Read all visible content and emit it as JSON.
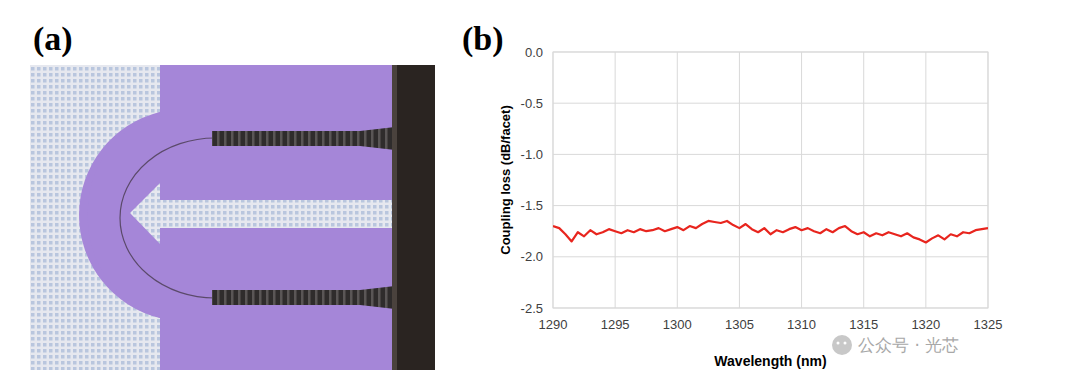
{
  "panels": {
    "a": {
      "label": "(a)"
    },
    "b": {
      "label": "(b)"
    }
  },
  "watermark": "公众号 · 光芯",
  "chart_data": {
    "type": "line",
    "x_label": "Wavelength (nm)",
    "y_label": "Coupling loss (dB/facet)",
    "color": "#e8251e",
    "grid": true,
    "xlim": [
      1290,
      1325
    ],
    "xticks": [
      1290,
      1295,
      1300,
      1305,
      1310,
      1315,
      1320,
      1325
    ],
    "ylim": [
      -2.5,
      0
    ],
    "yticks": [
      {
        "value": 0,
        "label": "0.0"
      },
      -0.5,
      {
        "value": -1,
        "label": "-1.0"
      },
      -1.5,
      {
        "value": -2,
        "label": "-2.0"
      },
      -2.5
    ],
    "x": [
      1290,
      1290.5,
      1291,
      1291.5,
      1292,
      1292.5,
      1293,
      1293.5,
      1294,
      1294.5,
      1295,
      1295.5,
      1296,
      1296.5,
      1297,
      1297.5,
      1298,
      1298.5,
      1299,
      1299.5,
      1300,
      1300.5,
      1301,
      1301.5,
      1302,
      1302.5,
      1303,
      1303.5,
      1304,
      1304.5,
      1305,
      1305.5,
      1306,
      1306.5,
      1307,
      1307.5,
      1308,
      1308.5,
      1309,
      1309.5,
      1310,
      1310.5,
      1311,
      1311.5,
      1312,
      1312.5,
      1313,
      1313.5,
      1314,
      1314.5,
      1315,
      1315.5,
      1316,
      1316.5,
      1317,
      1317.5,
      1318,
      1318.5,
      1319,
      1319.5,
      1320,
      1320.5,
      1321,
      1321.5,
      1322,
      1322.5,
      1323,
      1323.5,
      1324,
      1324.5,
      1325
    ],
    "values": [
      -1.7,
      -1.72,
      -1.78,
      -1.85,
      -1.76,
      -1.8,
      -1.74,
      -1.78,
      -1.76,
      -1.73,
      -1.75,
      -1.77,
      -1.74,
      -1.76,
      -1.73,
      -1.75,
      -1.74,
      -1.72,
      -1.75,
      -1.73,
      -1.71,
      -1.74,
      -1.7,
      -1.72,
      -1.68,
      -1.65,
      -1.66,
      -1.67,
      -1.65,
      -1.69,
      -1.72,
      -1.68,
      -1.73,
      -1.76,
      -1.72,
      -1.78,
      -1.74,
      -1.76,
      -1.73,
      -1.71,
      -1.74,
      -1.72,
      -1.75,
      -1.77,
      -1.73,
      -1.76,
      -1.72,
      -1.7,
      -1.75,
      -1.78,
      -1.76,
      -1.8,
      -1.77,
      -1.79,
      -1.76,
      -1.78,
      -1.8,
      -1.77,
      -1.81,
      -1.83,
      -1.86,
      -1.82,
      -1.79,
      -1.83,
      -1.78,
      -1.8,
      -1.76,
      -1.77,
      -1.74,
      -1.73,
      -1.72
    ]
  }
}
